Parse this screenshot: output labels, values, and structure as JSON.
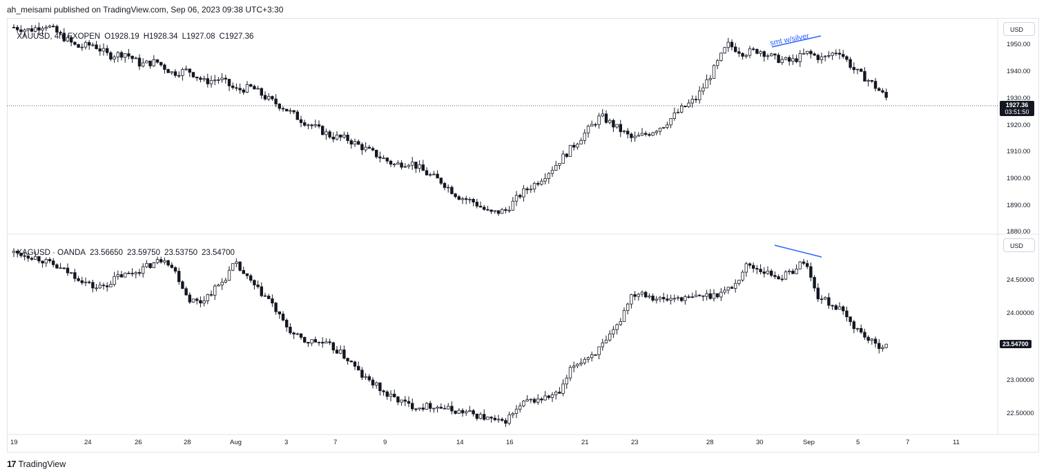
{
  "header": {
    "publisher": "ah_meisami published on TradingView.com, Sep 06, 2023 09:38 UTC+3:30"
  },
  "brand": {
    "logo": "17",
    "name": "TradingView"
  },
  "top_pane": {
    "legend": [
      "XAUUSD, 4h, FXOPEN",
      "O1928.19",
      "H1928.34",
      "L1927.08",
      "C1927.36"
    ],
    "currency_button": "USD",
    "price_ticks": [
      "1950.00",
      "1940.00",
      "1930.00",
      "1920.00",
      "1910.00",
      "1900.00",
      "1890.00",
      "1880.00"
    ],
    "last_price": "1927.36",
    "countdown": "03:51:50",
    "annotation": "smt w/silver",
    "line_color": "#2962ff"
  },
  "bottom_pane": {
    "legend": [
      "XAGUSD · OANDA",
      "23.56650",
      "23.59750",
      "23.53750",
      "23.54700"
    ],
    "currency_button": "USD",
    "price_ticks": [
      "24.50000",
      "24.00000",
      "23.00000",
      "22.50000"
    ],
    "last_price": "23.54700"
  },
  "time_axis": [
    "19",
    "24",
    "26",
    "28",
    "Aug",
    "3",
    "7",
    "9",
    "14",
    "16",
    "21",
    "23",
    "28",
    "30",
    "Sep",
    "5",
    "7",
    "11"
  ],
  "chart_data": [
    {
      "type": "candlestick",
      "symbol": "XAUUSD",
      "timeframe": "4h",
      "ylim": [
        1880,
        1955
      ],
      "close_path": [
        1952,
        1951,
        1953,
        1949,
        1945,
        1946,
        1942,
        1943,
        1939,
        1940,
        1936,
        1937,
        1933,
        1934,
        1930,
        1931,
        1927,
        1924,
        1920,
        1917,
        1914,
        1913,
        1910,
        1907,
        1904,
        1905,
        1901,
        1898,
        1893,
        1891,
        1887,
        1888,
        1894,
        1898,
        1903,
        1909,
        1915,
        1921,
        1917,
        1913,
        1915,
        1918,
        1923,
        1927,
        1936,
        1946,
        1943,
        1944,
        1941,
        1940,
        1943,
        1941,
        1944,
        1937,
        1933,
        1927.36
      ]
    },
    {
      "type": "candlestick",
      "symbol": "XAGUSD",
      "ylim": [
        22.3,
        25.1
      ],
      "close_path": [
        24.85,
        24.82,
        24.78,
        24.7,
        24.62,
        24.55,
        24.45,
        24.35,
        24.4,
        24.52,
        24.55,
        24.62,
        24.7,
        24.78,
        24.55,
        24.2,
        24.15,
        24.3,
        24.45,
        24.7,
        24.5,
        24.32,
        24.18,
        23.9,
        23.7,
        23.6,
        23.6,
        23.55,
        23.45,
        23.3,
        23.1,
        23.0,
        22.85,
        22.78,
        22.7,
        22.68,
        22.7,
        22.66,
        22.62,
        22.6,
        22.55,
        22.5,
        22.45,
        22.6,
        22.75,
        22.78,
        22.82,
        22.88,
        23.25,
        23.35,
        23.45,
        23.6,
        23.85,
        24.25,
        24.3,
        24.22,
        24.18,
        24.22,
        24.2,
        24.24,
        24.25,
        24.3,
        24.4,
        24.68,
        24.62,
        24.55,
        24.5,
        24.6,
        24.75,
        24.25,
        24.15,
        24.05,
        23.85,
        23.7,
        23.55,
        23.547
      ]
    }
  ]
}
